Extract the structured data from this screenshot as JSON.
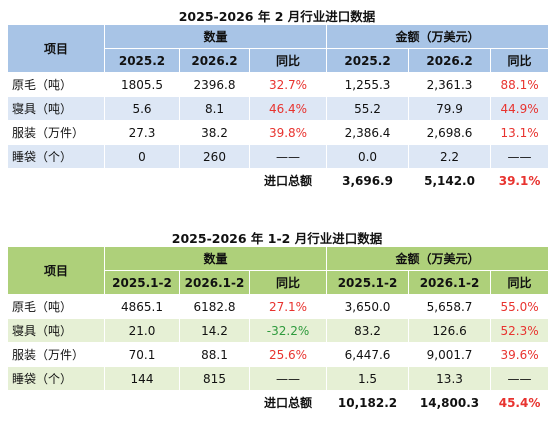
{
  "table1": {
    "title": "2025-2026 年 2 月行业进口数据",
    "col_item": "项目",
    "group_qty": "数量",
    "group_amt": "金额（万美元）",
    "sub": [
      "2025.2",
      "2026.2",
      "同比",
      "2025.2",
      "2026.2",
      "同比"
    ],
    "rows": [
      {
        "label": "原毛（吨）",
        "q1": "1805.5",
        "q2": "2396.8",
        "qy": "32.7%",
        "a1": "1,255.3",
        "a2": "2,361.3",
        "ay": "88.1%"
      },
      {
        "label": "寝具（吨）",
        "q1": "5.6",
        "q2": "8.1",
        "qy": "46.4%",
        "a1": "55.2",
        "a2": "79.9",
        "ay": "44.9%"
      },
      {
        "label": "服装（万件）",
        "q1": "27.3",
        "q2": "38.2",
        "qy": "39.8%",
        "a1": "2,386.4",
        "a2": "2,698.6",
        "ay": "13.1%"
      },
      {
        "label": "睡袋（个）",
        "q1": "0",
        "q2": "260",
        "qy": "——",
        "a1": "0.0",
        "a2": "2.2",
        "ay": "——"
      }
    ],
    "total": {
      "label": "进口总额",
      "a1": "3,696.9",
      "a2": "5,142.0",
      "ay": "39.1%"
    }
  },
  "table2": {
    "title": "2025-2026 年 1-2 月行业进口数据",
    "col_item": "项目",
    "group_qty": "数量",
    "group_amt": "金额（万美元）",
    "sub": [
      "2025.1-2",
      "2026.1-2",
      "同比",
      "2025.1-2",
      "2026.1-2",
      "同比"
    ],
    "rows": [
      {
        "label": "原毛（吨）",
        "q1": "4865.1",
        "q2": "6182.8",
        "qy": "27.1%",
        "a1": "3,650.0",
        "a2": "5,658.7",
        "ay": "55.0%"
      },
      {
        "label": "寝具（吨）",
        "q1": "21.0",
        "q2": "14.2",
        "qy": "-32.2%",
        "a1": "83.2",
        "a2": "126.6",
        "ay": "52.3%"
      },
      {
        "label": "服装（万件）",
        "q1": "70.1",
        "q2": "88.1",
        "qy": "25.6%",
        "a1": "6,447.6",
        "a2": "9,001.7",
        "ay": "39.6%"
      },
      {
        "label": "睡袋（个）",
        "q1": "144",
        "q2": "815",
        "qy": "——",
        "a1": "1.5",
        "a2": "13.3",
        "ay": "——"
      }
    ],
    "total": {
      "label": "进口总额",
      "a1": "10,182.2",
      "a2": "14,800.3",
      "ay": "45.4%"
    }
  },
  "colors": {
    "positive": "#e8332f",
    "negative": "#2e9a3c",
    "blue_header": "#a8c4e6",
    "blue_band": "#dde7f5",
    "green_header": "#aed07a",
    "green_band": "#e6f0d5"
  }
}
